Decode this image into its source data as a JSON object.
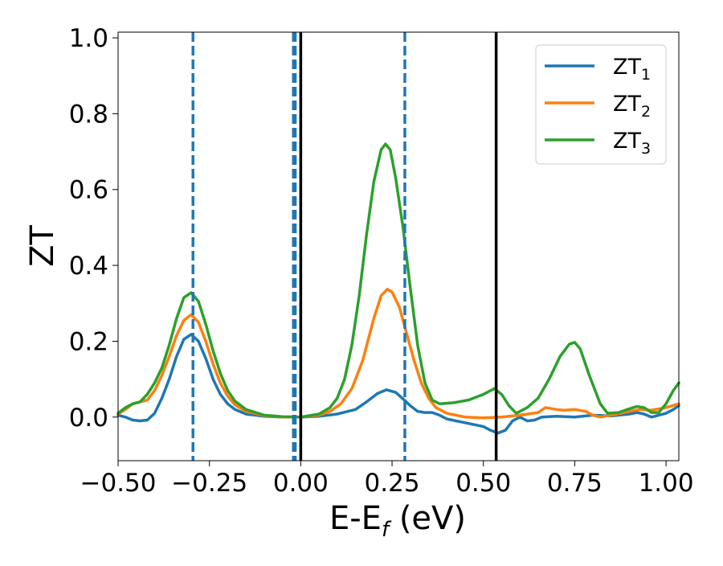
{
  "chart_data": {
    "type": "line",
    "xlabel_main": "E-E",
    "xlabel_sub": "f",
    "xlabel_tail": " (eV)",
    "ylabel": "ZT",
    "xlim": [
      -0.5,
      1.035
    ],
    "ylim": [
      -0.115,
      1.015
    ],
    "x_ticks": [
      -0.5,
      -0.25,
      0.0,
      0.25,
      0.5,
      0.75,
      1.0
    ],
    "x_tick_labels": [
      "−0.50",
      "−0.25",
      "0.00",
      "0.25",
      "0.50",
      "0.75",
      "1.00"
    ],
    "y_ticks": [
      0.0,
      0.2,
      0.4,
      0.6,
      0.8,
      1.0
    ],
    "y_tick_labels": [
      "0.0",
      "0.2",
      "0.4",
      "0.6",
      "0.8",
      "1.0"
    ],
    "grid": false,
    "legend_placement": "top-right",
    "vlines_dashed": [
      -0.295,
      -0.02,
      -0.015,
      0.285
    ],
    "vlines_solid": [
      0.0,
      0.535
    ],
    "series": [
      {
        "name": "ZT",
        "sub": "1",
        "color": "#1f77b4",
        "points": [
          [
            -0.5,
            0.005
          ],
          [
            -0.48,
            0.0
          ],
          [
            -0.46,
            -0.008
          ],
          [
            -0.44,
            -0.01
          ],
          [
            -0.42,
            -0.008
          ],
          [
            -0.4,
            0.01
          ],
          [
            -0.38,
            0.05
          ],
          [
            -0.36,
            0.1
          ],
          [
            -0.34,
            0.16
          ],
          [
            -0.32,
            0.205
          ],
          [
            -0.3,
            0.218
          ],
          [
            -0.28,
            0.2
          ],
          [
            -0.26,
            0.155
          ],
          [
            -0.24,
            0.1
          ],
          [
            -0.22,
            0.06
          ],
          [
            -0.2,
            0.035
          ],
          [
            -0.18,
            0.02
          ],
          [
            -0.15,
            0.008
          ],
          [
            -0.1,
            0.002
          ],
          [
            -0.05,
            0.0
          ],
          [
            0.0,
            0.0
          ],
          [
            0.05,
            0.002
          ],
          [
            0.1,
            0.008
          ],
          [
            0.15,
            0.02
          ],
          [
            0.18,
            0.04
          ],
          [
            0.21,
            0.062
          ],
          [
            0.235,
            0.072
          ],
          [
            0.26,
            0.065
          ],
          [
            0.28,
            0.048
          ],
          [
            0.3,
            0.03
          ],
          [
            0.32,
            0.015
          ],
          [
            0.34,
            0.012
          ],
          [
            0.36,
            0.012
          ],
          [
            0.38,
            0.005
          ],
          [
            0.4,
            -0.005
          ],
          [
            0.45,
            -0.015
          ],
          [
            0.5,
            -0.025
          ],
          [
            0.52,
            -0.035
          ],
          [
            0.54,
            -0.042
          ],
          [
            0.56,
            -0.035
          ],
          [
            0.58,
            -0.01
          ],
          [
            0.6,
            0.0
          ],
          [
            0.62,
            -0.01
          ],
          [
            0.64,
            -0.008
          ],
          [
            0.66,
            0.0
          ],
          [
            0.7,
            0.002
          ],
          [
            0.75,
            0.0
          ],
          [
            0.8,
            0.005
          ],
          [
            0.85,
            0.003
          ],
          [
            0.9,
            0.008
          ],
          [
            0.92,
            0.012
          ],
          [
            0.94,
            0.008
          ],
          [
            0.96,
            0.0
          ],
          [
            0.98,
            0.005
          ],
          [
            1.0,
            0.01
          ],
          [
            1.02,
            0.02
          ],
          [
            1.035,
            0.03
          ]
        ]
      },
      {
        "name": "ZT",
        "sub": "2",
        "color": "#ff7f0e",
        "points": [
          [
            -0.5,
            0.008
          ],
          [
            -0.48,
            0.02
          ],
          [
            -0.46,
            0.035
          ],
          [
            -0.44,
            0.04
          ],
          [
            -0.42,
            0.045
          ],
          [
            -0.4,
            0.07
          ],
          [
            -0.38,
            0.11
          ],
          [
            -0.36,
            0.16
          ],
          [
            -0.34,
            0.215
          ],
          [
            -0.32,
            0.255
          ],
          [
            -0.3,
            0.27
          ],
          [
            -0.28,
            0.25
          ],
          [
            -0.26,
            0.2
          ],
          [
            -0.24,
            0.14
          ],
          [
            -0.22,
            0.09
          ],
          [
            -0.2,
            0.055
          ],
          [
            -0.18,
            0.032
          ],
          [
            -0.15,
            0.015
          ],
          [
            -0.1,
            0.004
          ],
          [
            -0.05,
            0.0
          ],
          [
            0.0,
            0.0
          ],
          [
            0.05,
            0.005
          ],
          [
            0.08,
            0.015
          ],
          [
            0.11,
            0.035
          ],
          [
            0.14,
            0.075
          ],
          [
            0.17,
            0.15
          ],
          [
            0.2,
            0.26
          ],
          [
            0.22,
            0.32
          ],
          [
            0.237,
            0.337
          ],
          [
            0.25,
            0.33
          ],
          [
            0.27,
            0.29
          ],
          [
            0.29,
            0.22
          ],
          [
            0.31,
            0.15
          ],
          [
            0.33,
            0.09
          ],
          [
            0.35,
            0.05
          ],
          [
            0.37,
            0.025
          ],
          [
            0.4,
            0.01
          ],
          [
            0.45,
            0.0
          ],
          [
            0.5,
            -0.002
          ],
          [
            0.55,
            0.0
          ],
          [
            0.6,
            0.005
          ],
          [
            0.65,
            0.012
          ],
          [
            0.67,
            0.025
          ],
          [
            0.7,
            0.02
          ],
          [
            0.72,
            0.018
          ],
          [
            0.75,
            0.02
          ],
          [
            0.78,
            0.015
          ],
          [
            0.8,
            0.005
          ],
          [
            0.82,
            0.0
          ],
          [
            0.85,
            0.005
          ],
          [
            0.9,
            0.015
          ],
          [
            0.93,
            0.02
          ],
          [
            0.96,
            0.018
          ],
          [
            1.0,
            0.025
          ],
          [
            1.035,
            0.035
          ]
        ]
      },
      {
        "name": "ZT",
        "sub": "3",
        "color": "#2ca02c",
        "points": [
          [
            -0.5,
            0.01
          ],
          [
            -0.48,
            0.025
          ],
          [
            -0.46,
            0.035
          ],
          [
            -0.44,
            0.04
          ],
          [
            -0.42,
            0.06
          ],
          [
            -0.4,
            0.09
          ],
          [
            -0.38,
            0.13
          ],
          [
            -0.36,
            0.19
          ],
          [
            -0.34,
            0.26
          ],
          [
            -0.32,
            0.315
          ],
          [
            -0.3,
            0.328
          ],
          [
            -0.28,
            0.305
          ],
          [
            -0.26,
            0.245
          ],
          [
            -0.24,
            0.175
          ],
          [
            -0.22,
            0.115
          ],
          [
            -0.2,
            0.07
          ],
          [
            -0.18,
            0.042
          ],
          [
            -0.15,
            0.02
          ],
          [
            -0.1,
            0.005
          ],
          [
            -0.05,
            0.001
          ],
          [
            0.0,
            0.0
          ],
          [
            0.05,
            0.008
          ],
          [
            0.08,
            0.025
          ],
          [
            0.1,
            0.05
          ],
          [
            0.12,
            0.1
          ],
          [
            0.14,
            0.19
          ],
          [
            0.16,
            0.32
          ],
          [
            0.18,
            0.48
          ],
          [
            0.2,
            0.62
          ],
          [
            0.22,
            0.705
          ],
          [
            0.232,
            0.72
          ],
          [
            0.245,
            0.705
          ],
          [
            0.26,
            0.63
          ],
          [
            0.28,
            0.5
          ],
          [
            0.3,
            0.34
          ],
          [
            0.32,
            0.19
          ],
          [
            0.34,
            0.09
          ],
          [
            0.36,
            0.045
          ],
          [
            0.38,
            0.035
          ],
          [
            0.42,
            0.038
          ],
          [
            0.46,
            0.045
          ],
          [
            0.5,
            0.06
          ],
          [
            0.53,
            0.075
          ],
          [
            0.55,
            0.06
          ],
          [
            0.57,
            0.03
          ],
          [
            0.59,
            0.01
          ],
          [
            0.62,
            0.025
          ],
          [
            0.65,
            0.05
          ],
          [
            0.68,
            0.1
          ],
          [
            0.71,
            0.16
          ],
          [
            0.735,
            0.192
          ],
          [
            0.75,
            0.197
          ],
          [
            0.765,
            0.18
          ],
          [
            0.79,
            0.11
          ],
          [
            0.82,
            0.035
          ],
          [
            0.84,
            0.01
          ],
          [
            0.87,
            0.012
          ],
          [
            0.9,
            0.022
          ],
          [
            0.92,
            0.028
          ],
          [
            0.94,
            0.025
          ],
          [
            0.96,
            0.012
          ],
          [
            0.98,
            0.012
          ],
          [
            1.0,
            0.035
          ],
          [
            1.02,
            0.07
          ],
          [
            1.035,
            0.09
          ]
        ]
      }
    ]
  }
}
